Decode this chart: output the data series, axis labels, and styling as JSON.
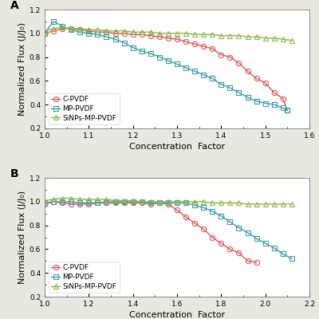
{
  "panel_A": {
    "label": "A",
    "xlim": [
      1.0,
      1.6
    ],
    "ylim": [
      0.2,
      1.2
    ],
    "xticks": [
      1.0,
      1.1,
      1.2,
      1.3,
      1.4,
      1.5,
      1.6
    ],
    "yticks": [
      0.2,
      0.4,
      0.6,
      0.8,
      1.0,
      1.2
    ],
    "xlabel": "Concentration  Factor",
    "ylabel": "Normalized Flux (J/J₀)",
    "series": {
      "C-PVDF": {
        "color": "#e05555",
        "marker": "o",
        "x": [
          1.0,
          1.02,
          1.04,
          1.06,
          1.08,
          1.1,
          1.12,
          1.14,
          1.16,
          1.18,
          1.2,
          1.22,
          1.24,
          1.26,
          1.28,
          1.3,
          1.32,
          1.34,
          1.36,
          1.38,
          1.4,
          1.42,
          1.44,
          1.46,
          1.48,
          1.5,
          1.52,
          1.54,
          1.55
        ],
        "y": [
          1.0,
          1.02,
          1.04,
          1.04,
          1.03,
          1.02,
          1.01,
          1.01,
          1.0,
          1.0,
          0.99,
          0.99,
          0.98,
          0.97,
          0.96,
          0.95,
          0.93,
          0.91,
          0.89,
          0.87,
          0.82,
          0.8,
          0.75,
          0.68,
          0.62,
          0.58,
          0.5,
          0.45,
          0.35
        ]
      },
      "MP-PVDF": {
        "color": "#3a9eaa",
        "marker": "s",
        "x": [
          1.0,
          1.02,
          1.04,
          1.06,
          1.08,
          1.1,
          1.12,
          1.14,
          1.16,
          1.18,
          1.2,
          1.22,
          1.24,
          1.26,
          1.28,
          1.3,
          1.32,
          1.34,
          1.36,
          1.38,
          1.4,
          1.42,
          1.44,
          1.46,
          1.48,
          1.5,
          1.52,
          1.54,
          1.55
        ],
        "y": [
          1.0,
          1.1,
          1.06,
          1.03,
          1.01,
          1.0,
          0.99,
          0.97,
          0.95,
          0.92,
          0.88,
          0.85,
          0.83,
          0.8,
          0.77,
          0.74,
          0.71,
          0.68,
          0.65,
          0.62,
          0.57,
          0.54,
          0.5,
          0.46,
          0.43,
          0.41,
          0.4,
          0.37,
          0.35
        ]
      },
      "SiNPs-MP-PVDF": {
        "color": "#8ab84a",
        "marker": "^",
        "x": [
          1.0,
          1.02,
          1.04,
          1.06,
          1.08,
          1.1,
          1.12,
          1.14,
          1.16,
          1.18,
          1.2,
          1.22,
          1.24,
          1.26,
          1.28,
          1.3,
          1.32,
          1.34,
          1.36,
          1.38,
          1.4,
          1.42,
          1.44,
          1.46,
          1.48,
          1.5,
          1.52,
          1.54,
          1.56
        ],
        "y": [
          1.02,
          1.04,
          1.05,
          1.04,
          1.04,
          1.03,
          1.03,
          1.02,
          1.02,
          1.02,
          1.01,
          1.01,
          1.01,
          1.0,
          1.0,
          1.0,
          1.0,
          0.99,
          0.99,
          0.99,
          0.98,
          0.98,
          0.98,
          0.97,
          0.97,
          0.96,
          0.96,
          0.95,
          0.94
        ]
      }
    }
  },
  "panel_B": {
    "label": "B",
    "xlim": [
      1.0,
      2.2
    ],
    "ylim": [
      0.2,
      1.2
    ],
    "xticks": [
      1.0,
      1.2,
      1.4,
      1.6,
      1.8,
      2.0,
      2.2
    ],
    "yticks": [
      0.2,
      0.4,
      0.6,
      0.8,
      1.0,
      1.2
    ],
    "xlabel": "Concentration  Factor",
    "ylabel": "Normalized Flux (J/J₀)",
    "series": {
      "C-PVDF": {
        "color": "#e05555",
        "marker": "o",
        "x": [
          1.0,
          1.04,
          1.08,
          1.12,
          1.16,
          1.2,
          1.24,
          1.28,
          1.32,
          1.36,
          1.4,
          1.44,
          1.48,
          1.52,
          1.56,
          1.6,
          1.64,
          1.68,
          1.72,
          1.76,
          1.8,
          1.84,
          1.88,
          1.92,
          1.96
        ],
        "y": [
          0.98,
          1.0,
          0.99,
          0.98,
          0.98,
          0.98,
          0.99,
          0.99,
          0.99,
          0.99,
          0.99,
          0.99,
          0.98,
          0.99,
          0.98,
          0.93,
          0.87,
          0.82,
          0.77,
          0.7,
          0.65,
          0.6,
          0.57,
          0.5,
          0.49
        ]
      },
      "MP-PVDF": {
        "color": "#3a9eaa",
        "marker": "s",
        "x": [
          1.0,
          1.04,
          1.08,
          1.12,
          1.16,
          1.2,
          1.24,
          1.28,
          1.32,
          1.36,
          1.4,
          1.44,
          1.48,
          1.52,
          1.56,
          1.6,
          1.64,
          1.68,
          1.72,
          1.76,
          1.8,
          1.84,
          1.88,
          1.92,
          1.96,
          2.0,
          2.04,
          2.08,
          2.12
        ],
        "y": [
          0.99,
          1.0,
          1.0,
          1.0,
          0.99,
          0.99,
          0.99,
          1.0,
          1.0,
          1.0,
          1.0,
          1.0,
          0.99,
          0.99,
          0.99,
          0.99,
          0.99,
          0.97,
          0.95,
          0.92,
          0.88,
          0.83,
          0.78,
          0.74,
          0.69,
          0.65,
          0.61,
          0.56,
          0.52
        ]
      },
      "SiNPs-MP-PVDF": {
        "color": "#8ab84a",
        "marker": "^",
        "x": [
          1.0,
          1.04,
          1.08,
          1.12,
          1.16,
          1.2,
          1.24,
          1.28,
          1.32,
          1.36,
          1.4,
          1.44,
          1.48,
          1.52,
          1.56,
          1.6,
          1.64,
          1.68,
          1.72,
          1.76,
          1.8,
          1.84,
          1.88,
          1.92,
          1.96,
          2.0,
          2.04,
          2.08,
          2.12
        ],
        "y": [
          1.01,
          1.02,
          1.03,
          1.03,
          1.02,
          1.02,
          1.02,
          1.02,
          1.01,
          1.01,
          1.01,
          1.0,
          1.0,
          1.0,
          1.0,
          1.0,
          1.0,
          1.0,
          1.0,
          0.99,
          0.99,
          0.99,
          0.99,
          0.98,
          0.98,
          0.98,
          0.98,
          0.98,
          0.98
        ]
      }
    }
  },
  "figure": {
    "bg_color": "#e8e8e0",
    "axes_bg": "#ffffff",
    "marker_size": 4.5,
    "linewidth": 1.0,
    "legend_fontsize": 6.5,
    "tick_fontsize": 6.5,
    "label_fontsize": 8.0,
    "panel_label_fontsize": 10,
    "spine_color": "#888888",
    "spine_lw": 0.7
  }
}
